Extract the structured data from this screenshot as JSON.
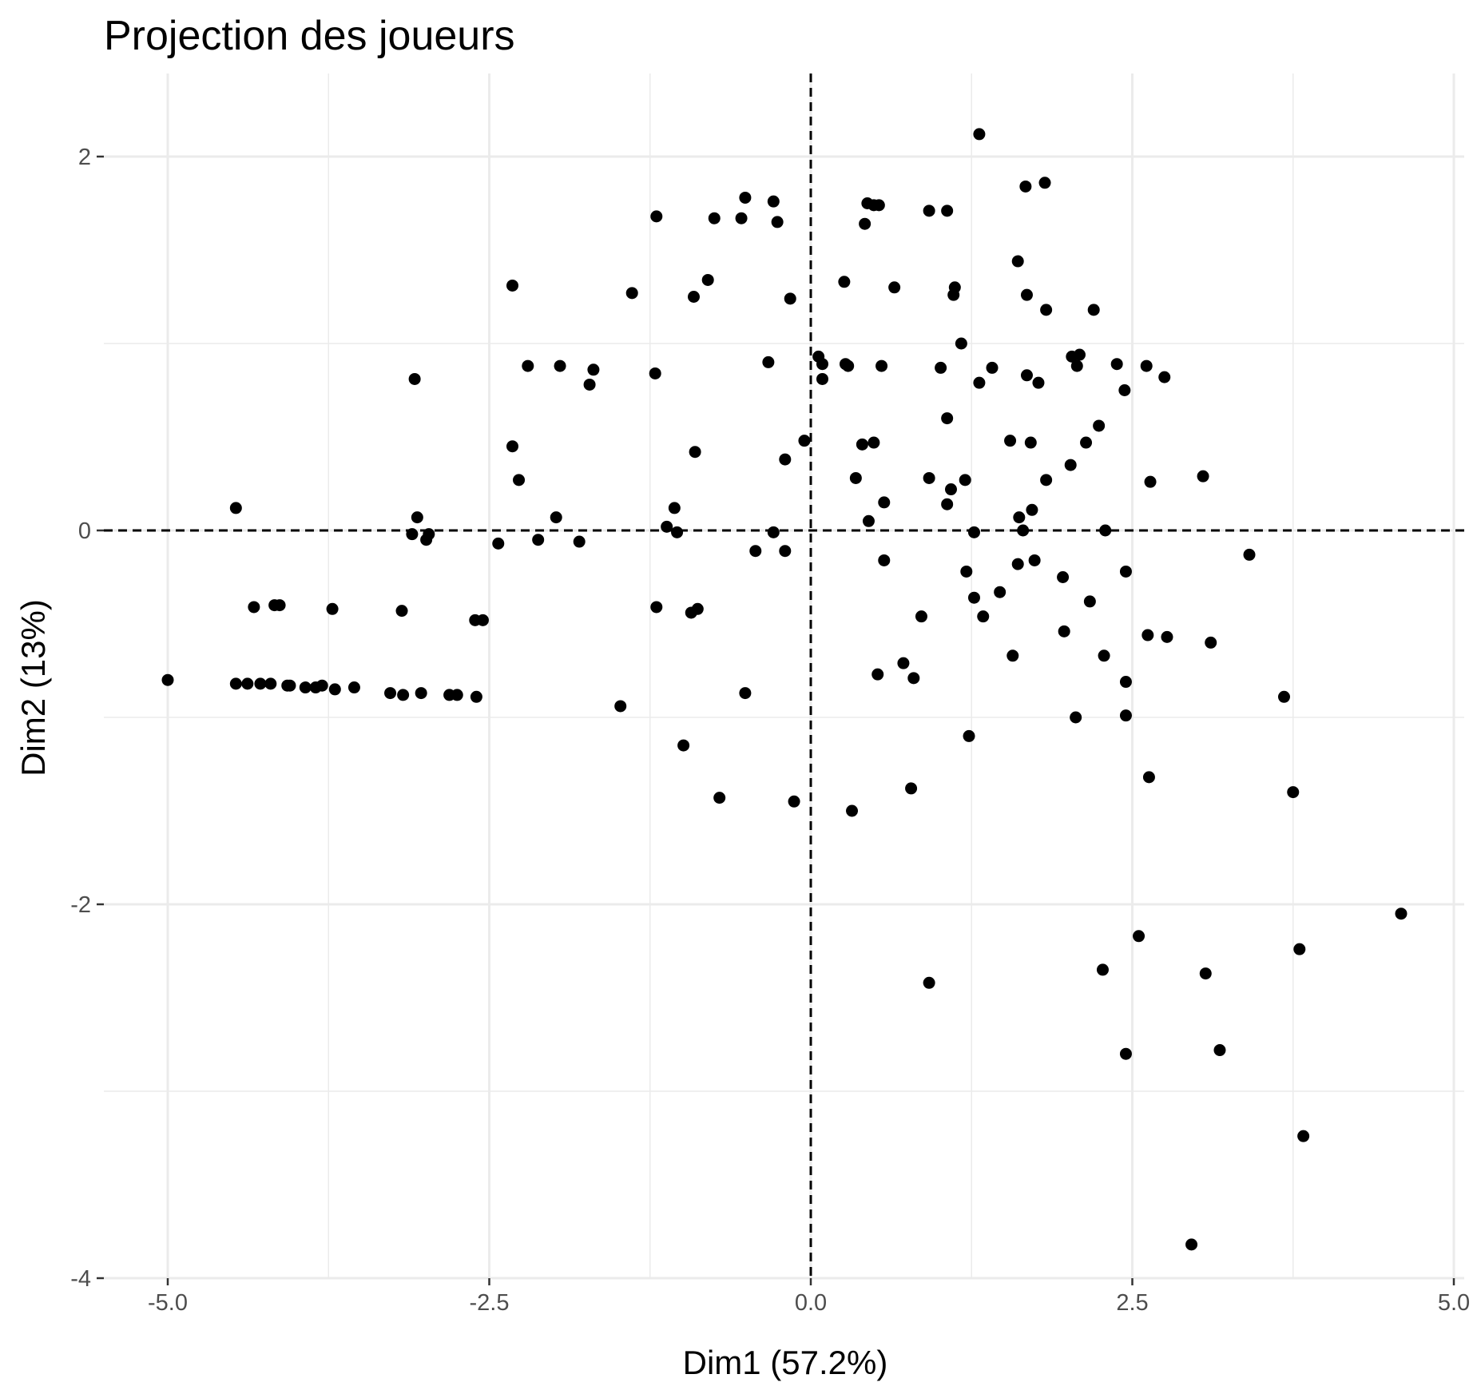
{
  "chart_data": {
    "type": "scatter",
    "title": "Projection des joueurs",
    "xlabel": "Dim1 (57.2%)",
    "ylabel": "Dim2 (13%)",
    "xlim": [
      -5.5,
      5.0
    ],
    "ylim": [
      -4.0,
      2.4
    ],
    "xticks": [
      -5.0,
      -2.5,
      0.0,
      2.5,
      5.0
    ],
    "xtick_labels": [
      "-5.0",
      "-2.5",
      "0.0",
      "2.5",
      "5.0"
    ],
    "yticks": [
      -4,
      -2,
      0,
      2
    ],
    "ytick_labels": [
      "-4",
      "-2",
      "0",
      "2"
    ],
    "grid": true,
    "reference_lines": {
      "x": 0,
      "y": 0,
      "style": "dashed"
    },
    "point_color": "#000000",
    "points": [
      [
        -5.0,
        -0.8
      ],
      [
        -4.47,
        0.12
      ],
      [
        -4.47,
        -0.82
      ],
      [
        -4.38,
        -0.82
      ],
      [
        -4.33,
        -0.41
      ],
      [
        -4.28,
        -0.82
      ],
      [
        -4.2,
        -0.82
      ],
      [
        -4.17,
        -0.4
      ],
      [
        -4.13,
        -0.4
      ],
      [
        -4.07,
        -0.83
      ],
      [
        -4.05,
        -0.83
      ],
      [
        -3.93,
        -0.84
      ],
      [
        -3.85,
        -0.84
      ],
      [
        -3.8,
        -0.83
      ],
      [
        -3.72,
        -0.42
      ],
      [
        -3.7,
        -0.85
      ],
      [
        -3.55,
        -0.84
      ],
      [
        -3.27,
        -0.87
      ],
      [
        -3.18,
        -0.43
      ],
      [
        -3.17,
        -0.88
      ],
      [
        -3.08,
        0.81
      ],
      [
        -3.06,
        0.07
      ],
      [
        -3.1,
        -0.02
      ],
      [
        -3.03,
        -0.87
      ],
      [
        -2.99,
        -0.05
      ],
      [
        -2.97,
        -0.02
      ],
      [
        -2.81,
        -0.88
      ],
      [
        -2.75,
        -0.88
      ],
      [
        -2.61,
        -0.48
      ],
      [
        -2.6,
        -0.89
      ],
      [
        -2.55,
        -0.48
      ],
      [
        -2.43,
        -0.07
      ],
      [
        -2.32,
        1.31
      ],
      [
        -2.32,
        0.45
      ],
      [
        -2.27,
        0.27
      ],
      [
        -2.2,
        0.88
      ],
      [
        -2.12,
        -0.05
      ],
      [
        -1.98,
        0.07
      ],
      [
        -1.95,
        0.88
      ],
      [
        -1.8,
        -0.06
      ],
      [
        -1.72,
        0.78
      ],
      [
        -1.69,
        0.86
      ],
      [
        -1.48,
        -0.94
      ],
      [
        -1.39,
        1.27
      ],
      [
        -1.21,
        0.84
      ],
      [
        -1.2,
        1.68
      ],
      [
        -1.2,
        -0.41
      ],
      [
        -1.12,
        0.02
      ],
      [
        -1.06,
        0.12
      ],
      [
        -1.04,
        -0.01
      ],
      [
        -0.99,
        -1.15
      ],
      [
        -0.93,
        -0.44
      ],
      [
        -0.91,
        1.25
      ],
      [
        -0.9,
        0.42
      ],
      [
        -0.88,
        -0.42
      ],
      [
        -0.8,
        1.34
      ],
      [
        -0.75,
        1.67
      ],
      [
        -0.71,
        -1.43
      ],
      [
        -0.54,
        1.67
      ],
      [
        -0.51,
        1.78
      ],
      [
        -0.51,
        -0.87
      ],
      [
        -0.43,
        -0.11
      ],
      [
        -0.33,
        0.9
      ],
      [
        -0.29,
        1.76
      ],
      [
        -0.29,
        -0.01
      ],
      [
        -0.26,
        1.65
      ],
      [
        -0.2,
        -0.11
      ],
      [
        -0.2,
        0.38
      ],
      [
        -0.16,
        1.24
      ],
      [
        -0.13,
        -1.45
      ],
      [
        -0.05,
        0.48
      ],
      [
        0.06,
        0.93
      ],
      [
        0.09,
        0.89
      ],
      [
        0.09,
        0.81
      ],
      [
        0.26,
        1.33
      ],
      [
        0.27,
        0.89
      ],
      [
        0.29,
        0.88
      ],
      [
        0.32,
        -1.5
      ],
      [
        0.35,
        0.28
      ],
      [
        0.4,
        0.46
      ],
      [
        0.42,
        1.64
      ],
      [
        0.44,
        1.75
      ],
      [
        0.45,
        0.05
      ],
      [
        0.49,
        1.74
      ],
      [
        0.49,
        0.47
      ],
      [
        0.52,
        -0.77
      ],
      [
        0.53,
        1.74
      ],
      [
        0.55,
        0.88
      ],
      [
        0.57,
        0.15
      ],
      [
        0.57,
        -0.16
      ],
      [
        0.65,
        1.3
      ],
      [
        0.72,
        -0.71
      ],
      [
        0.78,
        -1.38
      ],
      [
        0.8,
        -0.79
      ],
      [
        0.86,
        -0.46
      ],
      [
        0.92,
        1.71
      ],
      [
        0.92,
        0.28
      ],
      [
        0.92,
        -2.42
      ],
      [
        1.01,
        0.87
      ],
      [
        1.06,
        1.71
      ],
      [
        1.06,
        0.6
      ],
      [
        1.06,
        0.14
      ],
      [
        1.09,
        0.22
      ],
      [
        1.11,
        1.26
      ],
      [
        1.12,
        1.3
      ],
      [
        1.17,
        1.0
      ],
      [
        1.2,
        0.27
      ],
      [
        1.21,
        -0.22
      ],
      [
        1.23,
        -1.1
      ],
      [
        1.27,
        -0.36
      ],
      [
        1.27,
        -0.01
      ],
      [
        1.31,
        0.79
      ],
      [
        1.31,
        2.12
      ],
      [
        1.34,
        -0.46
      ],
      [
        1.41,
        0.87
      ],
      [
        1.47,
        -0.33
      ],
      [
        1.55,
        0.48
      ],
      [
        1.57,
        -0.67
      ],
      [
        1.61,
        1.44
      ],
      [
        1.61,
        -0.18
      ],
      [
        1.62,
        0.07
      ],
      [
        1.65,
        0.0
      ],
      [
        1.67,
        1.84
      ],
      [
        1.68,
        1.26
      ],
      [
        1.68,
        0.83
      ],
      [
        1.71,
        0.47
      ],
      [
        1.72,
        0.11
      ],
      [
        1.74,
        -0.16
      ],
      [
        1.77,
        0.79
      ],
      [
        1.82,
        1.86
      ],
      [
        1.83,
        1.18
      ],
      [
        1.83,
        0.27
      ],
      [
        1.96,
        -0.25
      ],
      [
        1.97,
        -0.54
      ],
      [
        2.02,
        0.35
      ],
      [
        2.03,
        0.93
      ],
      [
        2.06,
        -1.0
      ],
      [
        2.07,
        0.88
      ],
      [
        2.09,
        0.94
      ],
      [
        2.14,
        0.47
      ],
      [
        2.17,
        -0.38
      ],
      [
        2.2,
        1.18
      ],
      [
        2.24,
        0.56
      ],
      [
        2.27,
        -2.35
      ],
      [
        2.28,
        -0.67
      ],
      [
        2.29,
        0.0
      ],
      [
        2.38,
        0.89
      ],
      [
        2.44,
        0.75
      ],
      [
        2.45,
        -0.22
      ],
      [
        2.45,
        -0.81
      ],
      [
        2.45,
        -0.99
      ],
      [
        2.45,
        -2.8
      ],
      [
        2.55,
        -2.17
      ],
      [
        2.61,
        0.88
      ],
      [
        2.62,
        -0.56
      ],
      [
        2.63,
        -1.32
      ],
      [
        2.64,
        0.26
      ],
      [
        2.75,
        0.82
      ],
      [
        2.77,
        -0.57
      ],
      [
        2.96,
        -3.82
      ],
      [
        3.05,
        0.29
      ],
      [
        3.07,
        -2.37
      ],
      [
        3.11,
        -0.6
      ],
      [
        3.18,
        -2.78
      ],
      [
        3.41,
        -0.13
      ],
      [
        3.68,
        -0.89
      ],
      [
        3.75,
        -1.4
      ],
      [
        3.8,
        -2.24
      ],
      [
        3.83,
        -3.24
      ],
      [
        4.59,
        -2.05
      ]
    ]
  }
}
